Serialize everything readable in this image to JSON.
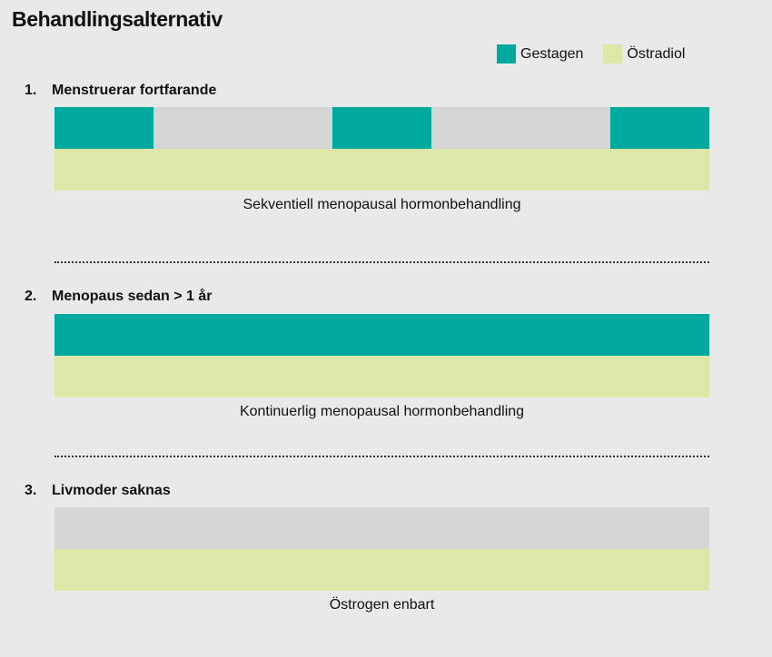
{
  "title": "Behandlingsalternativ",
  "colors": {
    "gestagen": "#00a99d",
    "ostradiol": "#dde8a8",
    "empty": "#d5d5d5"
  },
  "legend": {
    "gestagen": "Gestagen",
    "ostradiol": "Östradiol"
  },
  "options": [
    {
      "number": "1.",
      "heading": "Menstruerar fortfarande",
      "caption": "Sekventiell menopausal hormonbehandling",
      "gestagen_pattern": "intermittent",
      "estradiol_pattern": "continuous"
    },
    {
      "number": "2.",
      "heading": "Menopaus sedan > 1 år",
      "caption": "Kontinuerlig menopausal hormonbehandling",
      "gestagen_pattern": "continuous",
      "estradiol_pattern": "continuous"
    },
    {
      "number": "3.",
      "heading": "Livmoder saknas",
      "caption": "Östrogen enbart",
      "gestagen_pattern": "none",
      "estradiol_pattern": "continuous"
    }
  ]
}
